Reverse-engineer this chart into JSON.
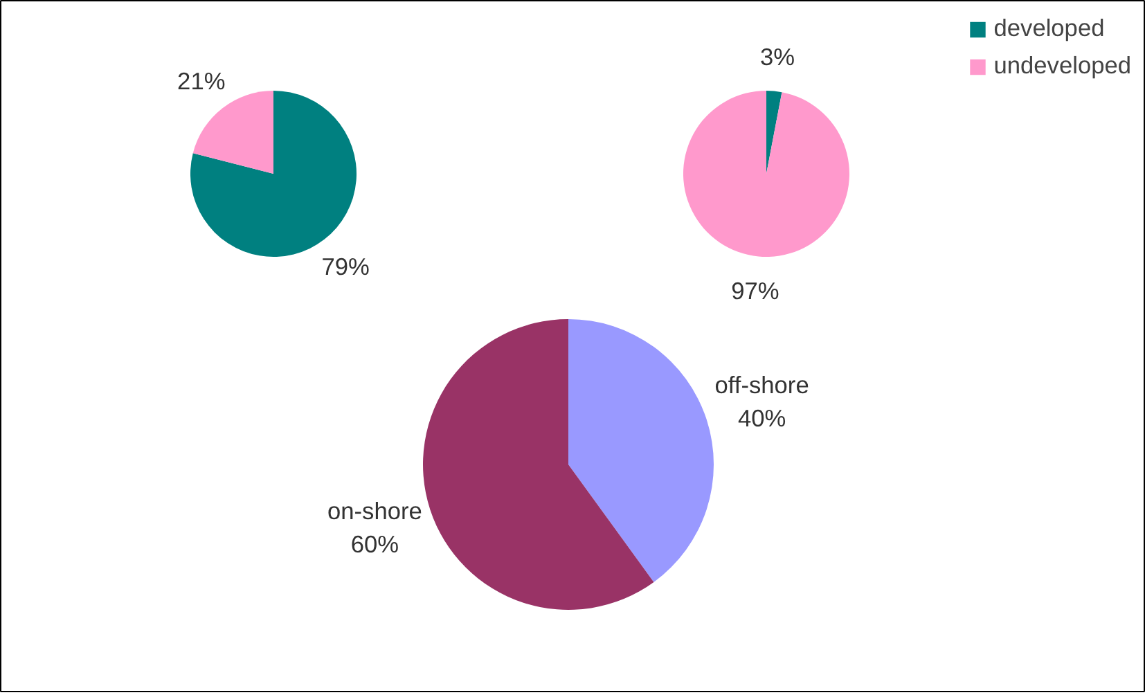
{
  "chart_data": [
    {
      "type": "pie",
      "categories": [
        "developed",
        "undeveloped"
      ],
      "values": [
        79,
        21
      ],
      "colors": [
        "#008080",
        "#ff99cc"
      ],
      "value_labels": [
        "79%",
        "21%"
      ],
      "data_labels": true,
      "legend": "top right"
    },
    {
      "type": "pie",
      "categories": [
        null,
        null
      ],
      "values": [
        3,
        97
      ],
      "colors": [
        "#008080",
        "#ff99cc"
      ],
      "value_labels": [
        "3%",
        "97%"
      ],
      "data_labels": true
    },
    {
      "type": "pie",
      "categories": [
        "off-shore",
        "on-shore"
      ],
      "values": [
        40,
        60
      ],
      "colors": [
        "#9999ff",
        "#993366"
      ],
      "value_labels": [
        "40%",
        "60%"
      ],
      "data_labels": true
    }
  ]
}
